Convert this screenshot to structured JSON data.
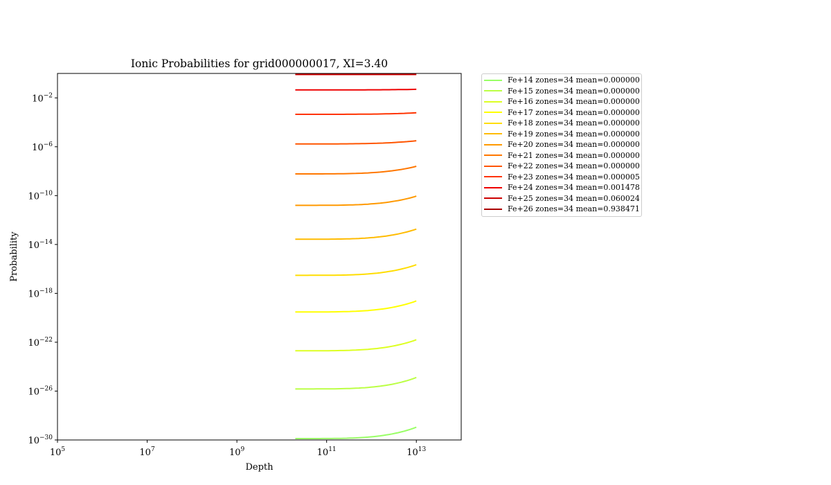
{
  "chart_data": {
    "type": "line",
    "title": "Ionic Probabilities for grid000000017, XI=3.40",
    "xlabel": "Depth",
    "ylabel": "Probability",
    "x_scale": "log",
    "y_scale": "log",
    "xlim": [
      100000,
      100000000000000
    ],
    "ylim": [
      1e-30,
      1
    ],
    "x_ticks": [
      {
        "value": 100000,
        "base": "10",
        "exp": "5"
      },
      {
        "value": 10000000,
        "base": "10",
        "exp": "7"
      },
      {
        "value": 1000000000,
        "base": "10",
        "exp": "9"
      },
      {
        "value": 100000000000,
        "base": "10",
        "exp": "11"
      },
      {
        "value": 10000000000000,
        "base": "10",
        "exp": "13"
      }
    ],
    "y_ticks": [
      {
        "value": 1e-30,
        "base": "10",
        "exp": "−30"
      },
      {
        "value": 1e-26,
        "base": "10",
        "exp": "−26"
      },
      {
        "value": 1e-22,
        "base": "10",
        "exp": "−22"
      },
      {
        "value": 1e-18,
        "base": "10",
        "exp": "−18"
      },
      {
        "value": 1e-14,
        "base": "10",
        "exp": "−14"
      },
      {
        "value": 1e-10,
        "base": "10",
        "exp": "−10"
      },
      {
        "value": 1e-06,
        "base": "10",
        "exp": "−6"
      },
      {
        "value": 0.01,
        "base": "10",
        "exp": "−2"
      }
    ],
    "x_range_of_data": [
      20000000000,
      10000000000000
    ],
    "legend_position": "outside upper-right",
    "series": [
      {
        "name": "Fe+14 zones=34 mean=0.000000",
        "color": "#99ff66",
        "start": 1.3e-30,
        "end": 1.1e-29
      },
      {
        "name": "Fe+15 zones=34 mean=0.000000",
        "color": "#bbff44",
        "start": 1.5e-26,
        "end": 1.3e-25
      },
      {
        "name": "Fe+16 zones=34 mean=0.000000",
        "color": "#ddff22",
        "start": 2e-23,
        "end": 1.6e-22
      },
      {
        "name": "Fe+17 zones=34 mean=0.000000",
        "color": "#ffff00",
        "start": 3e-20,
        "end": 2.4e-19
      },
      {
        "name": "Fe+18 zones=34 mean=0.000000",
        "color": "#ffdd00",
        "start": 3e-17,
        "end": 2.2e-16
      },
      {
        "name": "Fe+19 zones=34 mean=0.000000",
        "color": "#ffbb00",
        "start": 2.7e-14,
        "end": 1.8e-13
      },
      {
        "name": "Fe+20 zones=34 mean=0.000000",
        "color": "#ff9900",
        "start": 1.6e-11,
        "end": 9e-11
      },
      {
        "name": "Fe+21 zones=34 mean=0.000000",
        "color": "#ff7700",
        "start": 6e-09,
        "end": 2.5e-08
      },
      {
        "name": "Fe+22 zones=34 mean=0.000000",
        "color": "#ff5500",
        "start": 1.7e-06,
        "end": 3.1e-06
      },
      {
        "name": "Fe+23 zones=34 mean=0.000005",
        "color": "#ff3300",
        "start": 0.00045,
        "end": 0.0006
      },
      {
        "name": "Fe+24 zones=34 mean=0.001478",
        "color": "#ee0000",
        "start": 0.045,
        "end": 0.05
      },
      {
        "name": "Fe+25 zones=34 mean=0.060024",
        "color": "#cc0000",
        "start": 0.82,
        "end": 0.82
      },
      {
        "name": "Fe+26 zones=34 mean=0.938471",
        "color": "#aa0000",
        "start": null,
        "end": null
      }
    ]
  }
}
